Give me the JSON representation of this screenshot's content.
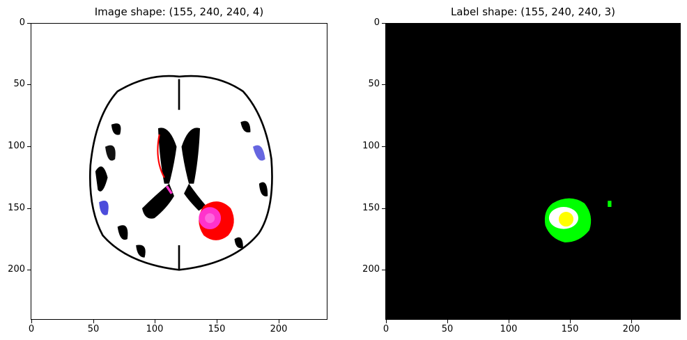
{
  "figure": {
    "panels": [
      {
        "title": "Image shape: (155, 240, 240, 4)",
        "ticks": {
          "y": [
            "0",
            "50",
            "100",
            "150",
            "200"
          ],
          "x": [
            "0",
            "50",
            "100",
            "150",
            "200"
          ]
        },
        "background": "#ffffff"
      },
      {
        "title": "Label shape: (155, 240, 240, 3)",
        "ticks": {
          "y": [
            "0",
            "50",
            "100",
            "150",
            "200"
          ],
          "x": [
            "0",
            "50",
            "100",
            "150",
            "200"
          ]
        },
        "background": "#000000"
      }
    ],
    "colors": {
      "tumor_core": "#ff0000",
      "enhancing": "#ff33cc",
      "label_edema": "#00ff00",
      "label_core": "#ffff00",
      "label_ring": "#ffffff"
    }
  }
}
